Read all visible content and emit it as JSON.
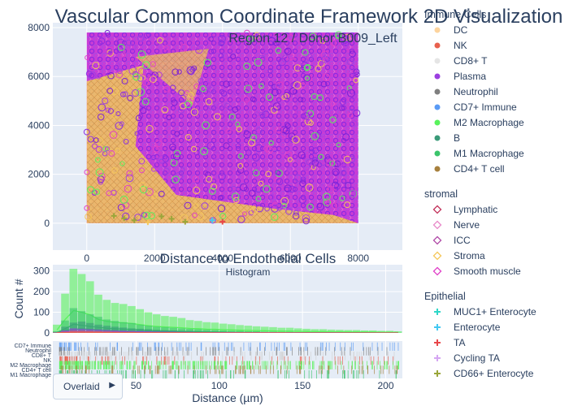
{
  "chart_data": [
    {
      "type": "scatter",
      "title": "Vascular Common Coordinate Framework 2D Visualization",
      "subtitle": "Region 12 / Donor B009_Left",
      "xlim": [
        -1000,
        9300
      ],
      "ylim": [
        -1100,
        8200
      ],
      "x_ticks": [
        0,
        2000,
        4000,
        6000,
        8000
      ],
      "y_ticks": [
        0,
        2000,
        4000,
        6000,
        8000
      ],
      "grid": true,
      "legend_placement": "right",
      "tissue_extent": {
        "x": [
          0,
          8000
        ],
        "y": [
          0,
          7800
        ]
      },
      "legend_groups": [
        {
          "name": "Immune Cells",
          "items": [
            {
              "label": "DC",
              "color": "#fdd49e",
              "symbol": "circle"
            },
            {
              "label": "NK",
              "color": "#e8614e",
              "symbol": "circle"
            },
            {
              "label": "CD8+ T",
              "color": "#e5e5e5",
              "symbol": "circle"
            },
            {
              "label": "Plasma",
              "color": "#9b3fe0",
              "symbol": "circle"
            },
            {
              "label": "Neutrophil",
              "color": "#7f7f7f",
              "symbol": "circle"
            },
            {
              "label": "CD7+ Immune",
              "color": "#5a9bf5",
              "symbol": "circle"
            },
            {
              "label": "M2 Macrophage",
              "color": "#59f25c",
              "symbol": "circle"
            },
            {
              "label": "B",
              "color": "#3a9a79",
              "symbol": "circle"
            },
            {
              "label": "M1 Macrophage",
              "color": "#3bc46b",
              "symbol": "circle"
            },
            {
              "label": "CD4+ T cell",
              "color": "#a7803e",
              "symbol": "circle"
            }
          ]
        },
        {
          "name": "stromal",
          "items": [
            {
              "label": "Lymphatic",
              "color": "#c2315a",
              "symbol": "diamond-open"
            },
            {
              "label": "Nerve",
              "color": "#e889c9",
              "symbol": "diamond-open"
            },
            {
              "label": "ICC",
              "color": "#b04aa8",
              "symbol": "diamond-open"
            },
            {
              "label": "Stroma",
              "color": "#f5c75a",
              "symbol": "diamond-open"
            },
            {
              "label": "Smooth muscle",
              "color": "#e040c8",
              "symbol": "diamond-open"
            }
          ]
        },
        {
          "name": "Epithelial",
          "items": [
            {
              "label": "MUC1+ Enterocyte",
              "color": "#2fd7c8",
              "symbol": "cross"
            },
            {
              "label": "Enterocyte",
              "color": "#43c8f2",
              "symbol": "cross"
            },
            {
              "label": "TA",
              "color": "#e8474a",
              "symbol": "cross"
            },
            {
              "label": "Cycling TA",
              "color": "#d5a6f2",
              "symbol": "cross"
            },
            {
              "label": "CD66+ Enterocyte",
              "color": "#9aa63a",
              "symbol": "cross"
            }
          ]
        }
      ],
      "outlier_points": [
        {
          "x": 800,
          "y": 300,
          "cell": "CD66+ Enterocyte"
        },
        {
          "x": 1100,
          "y": 200,
          "cell": "CD66+ Enterocyte"
        },
        {
          "x": 1400,
          "y": 120,
          "cell": "CD66+ Enterocyte"
        },
        {
          "x": 2200,
          "y": 280,
          "cell": "CD66+ Enterocyte"
        },
        {
          "x": 2500,
          "y": 180,
          "cell": "CD66+ Enterocyte"
        },
        {
          "x": 2900,
          "y": 60,
          "cell": "CD66+ Enterocyte"
        },
        {
          "x": 3700,
          "y": 120,
          "cell": "Enterocyte"
        },
        {
          "x": 4000,
          "y": 60,
          "cell": "TA"
        },
        {
          "x": 1800,
          "y": 40,
          "cell": "Stroma"
        }
      ]
    },
    {
      "type": "histogram",
      "title": "Distance to Endothelial Cells",
      "subtitle": "Histogram",
      "xlabel": "Distance (µm)",
      "ylabel": "Count #",
      "xlim": [
        0,
        210
      ],
      "ylim": [
        0,
        330
      ],
      "x_ticks": [
        50,
        100,
        150,
        200
      ],
      "y_ticks": [
        0,
        100,
        200,
        300
      ],
      "barmode": "overlay",
      "bin_width": 5,
      "series": [
        {
          "name": "M2 Macrophage",
          "color": "#59f25c",
          "values": [
            40,
            190,
            310,
            285,
            250,
            185,
            160,
            145,
            140,
            130,
            115,
            100,
            90,
            82,
            78,
            72,
            62,
            58,
            52,
            50,
            45,
            42,
            38,
            35,
            32,
            30,
            28,
            25,
            25,
            22,
            20,
            18,
            18,
            16,
            15,
            14,
            14,
            12,
            12,
            10,
            10,
            8
          ]
        },
        {
          "name": "M1 Macrophage",
          "color": "#3bc46b",
          "values": [
            8,
            60,
            120,
            105,
            90,
            78,
            65,
            58,
            52,
            48,
            40,
            35,
            30,
            28,
            25,
            22,
            20,
            18,
            16,
            14,
            12,
            10,
            10,
            8,
            8,
            6,
            6,
            5,
            5,
            4,
            4,
            3,
            3,
            3,
            2,
            2,
            2,
            2,
            1,
            1,
            1,
            1
          ]
        },
        {
          "name": "B",
          "color": "#3a9a79",
          "values": [
            5,
            30,
            50,
            55,
            48,
            40,
            35,
            30,
            26,
            22,
            20,
            18,
            15,
            13,
            12,
            10,
            9,
            8,
            7,
            6,
            5,
            5,
            4,
            4,
            3,
            3,
            3,
            2,
            2,
            2,
            2,
            1,
            1,
            1,
            1,
            1,
            1,
            1,
            1,
            0,
            0,
            0
          ]
        },
        {
          "name": "Plasma",
          "color": "#9b3fe0",
          "values": [
            3,
            12,
            22,
            20,
            18,
            16,
            14,
            12,
            11,
            10,
            9,
            8,
            7,
            6,
            6,
            5,
            5,
            4,
            4,
            3,
            3,
            3,
            2,
            2,
            2,
            2,
            2,
            1,
            1,
            1,
            1,
            1,
            1,
            1,
            1,
            0,
            0,
            0,
            0,
            0,
            0,
            0
          ]
        },
        {
          "name": "NK",
          "color": "#e8614e",
          "values": [
            2,
            6,
            10,
            10,
            9,
            8,
            7,
            6,
            5,
            5,
            4,
            4,
            3,
            3,
            3,
            2,
            2,
            2,
            2,
            1,
            1,
            1,
            1,
            1,
            1,
            1,
            1,
            1,
            0,
            0,
            0,
            0,
            0,
            0,
            0,
            0,
            0,
            0,
            0,
            0,
            0,
            0
          ]
        }
      ],
      "rug_labels": [
        "CD7+ Immune",
        "Neutrophil",
        "CD8+ T",
        "NK",
        "M2 Macrophage",
        "CD4+ T cell",
        "M1 Macrophage"
      ],
      "rug_rows": [
        {
          "label": "CD7+ Immune",
          "color": "#5a9bf5"
        },
        {
          "label": "Neutrophil",
          "color": "#7f7f7f"
        },
        {
          "label": "CD8+ T",
          "color": "#d0d0d0"
        },
        {
          "label": "NK",
          "color": "#e8614e"
        },
        {
          "label": "M2 Macrophage",
          "color": "#59f25c"
        },
        {
          "label": "CD4+ T cell",
          "color": "#a7803e"
        },
        {
          "label": "M1 Macrophage",
          "color": "#3bc46b"
        }
      ]
    }
  ],
  "controls": {
    "barmode_button": "Overlaid",
    "barmode_arrow": "▶"
  }
}
